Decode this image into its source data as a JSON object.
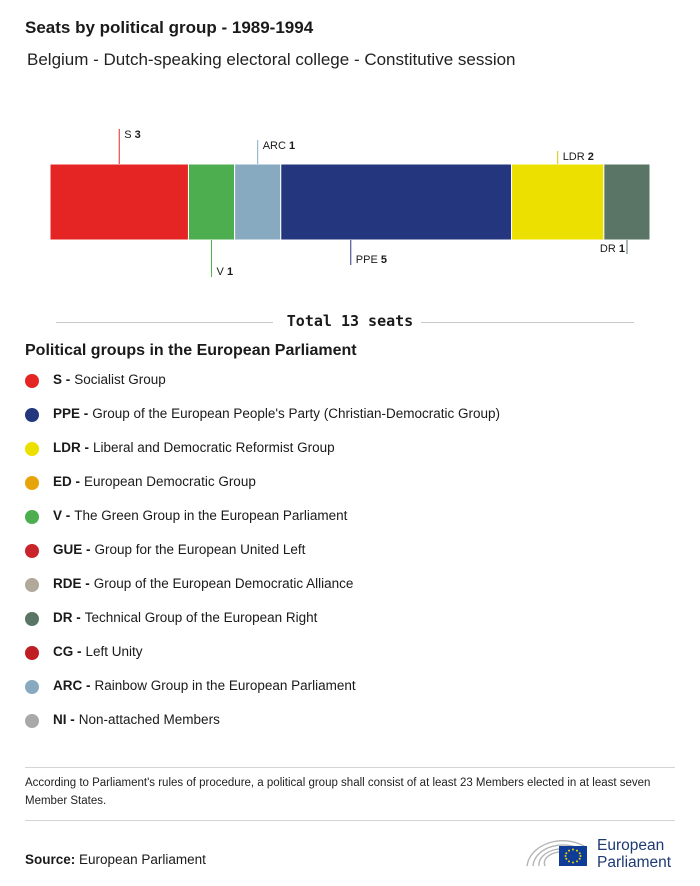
{
  "header": {
    "title": "Seats by political group - 1989-1994",
    "subtitle": "Belgium - Dutch-speaking electoral college - Constitutive session"
  },
  "chart_data": {
    "type": "bar",
    "orientation": "horizontal-stacked",
    "series": [
      {
        "code": "S",
        "value": 3,
        "color": "#e42524",
        "label_side": "above"
      },
      {
        "code": "V",
        "value": 1,
        "color": "#4cae4f",
        "label_side": "below"
      },
      {
        "code": "ARC",
        "value": 1,
        "color": "#88aac0",
        "label_side": "above"
      },
      {
        "code": "PPE",
        "value": 5,
        "color": "#24377e",
        "label_side": "below"
      },
      {
        "code": "LDR",
        "value": 2,
        "color": "#ece000",
        "label_side": "above"
      },
      {
        "code": "DR",
        "value": 1,
        "color": "#5a7565",
        "label_side": "below"
      }
    ],
    "total": 13
  },
  "total_label": "Total 13 seats",
  "legend": {
    "title": "Political groups in the European Parliament",
    "items": [
      {
        "code": "S -",
        "name": "Socialist Group",
        "color": "#e42524"
      },
      {
        "code": "PPE -",
        "name": "Group of the European People's Party (Christian-Democratic Group)",
        "color": "#24377e"
      },
      {
        "code": "LDR -",
        "name": "Liberal and Democratic Reformist Group",
        "color": "#ece000"
      },
      {
        "code": "ED -",
        "name": "European Democratic Group",
        "color": "#e6a40a"
      },
      {
        "code": "V -",
        "name": "The Green Group in the European Parliament",
        "color": "#4cae4f"
      },
      {
        "code": "GUE -",
        "name": "Group for the European United Left",
        "color": "#c8242b"
      },
      {
        "code": "RDE -",
        "name": "Group of the European Democratic Alliance",
        "color": "#b1aa9b"
      },
      {
        "code": "DR -",
        "name": "Technical Group of the European Right",
        "color": "#5a7565"
      },
      {
        "code": "CG -",
        "name": "Left Unity",
        "color": "#c01c24"
      },
      {
        "code": "ARC -",
        "name": "Rainbow Group in the European Parliament",
        "color": "#88aac0"
      },
      {
        "code": "NI -",
        "name": "Non-attached Members",
        "color": "#a9a9a9"
      }
    ]
  },
  "footnote": "According to Parliament's rules of procedure, a political group shall consist of at least 23 Members elected in at least seven Member States.",
  "source": {
    "label": "Source:",
    "value": "European Parliament"
  },
  "logo": {
    "line1": "European",
    "line2": "Parliament"
  }
}
